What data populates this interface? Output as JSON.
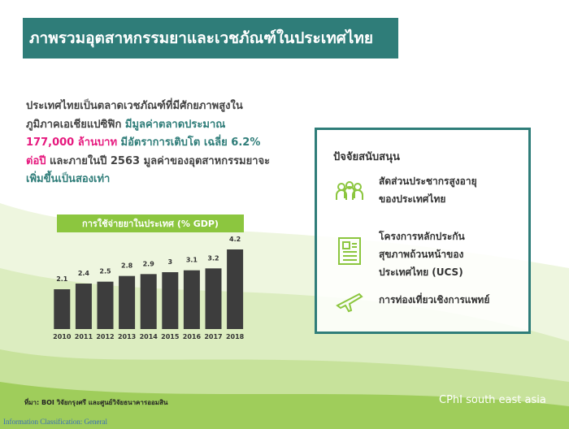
{
  "header": {
    "title": "ภาพรวมอุตสาหกรรมยาและเวชภัณฑ์ในประเทศไทย"
  },
  "intro": {
    "lines": [
      [
        {
          "text": "ประเทศไทยเป็นตลาดเวชภัณฑ์ที่มีศักยภาพสูงใน",
          "color": "#444444"
        }
      ],
      [
        {
          "text": "ภูมิภาคเอเชียแปซิฟิก ",
          "color": "#444444"
        },
        {
          "text": "มีมูลค่าตลาดประมาณ",
          "color": "#2f7d79"
        }
      ],
      [
        {
          "text": "177,000 ล้านบาท",
          "color": "#e6197e"
        },
        {
          "text": " มีอัตราการเติบโต เฉลี่ย 6.2%",
          "color": "#2f7d79"
        }
      ],
      [
        {
          "text": "ต่อปี",
          "color": "#e6197e"
        },
        {
          "text": " และภายในปี 2563 มูลค่าของอุตสาหกรรมยาจะ",
          "color": "#444444"
        }
      ],
      [
        {
          "text": "เพิ่มขึ้นเป็นสองเท่า",
          "color": "#2f7d79"
        }
      ]
    ]
  },
  "chart_data": {
    "type": "bar",
    "title": "การใช้จ่ายยาในประเทศ (% GDP)",
    "categories": [
      "2010",
      "2011",
      "2012",
      "2013",
      "2014",
      "2015",
      "2016",
      "2017",
      "2018"
    ],
    "values": [
      2.1,
      2.4,
      2.5,
      2.8,
      2.9,
      3,
      3.1,
      3.2,
      4.2
    ],
    "color": "#3d3d3d"
  },
  "panel": {
    "title": "ปัจจัยสนับสนุน",
    "items": [
      [
        "สัดส่วนประชากรสูงอายุ",
        "ของประเทศไทย"
      ],
      [
        "โครงการหลักประกัน",
        "สุขภาพถ้วนหน้าของ",
        "ประเทศไทย (UCS)"
      ],
      [
        "การท่องเที่ยวเชิงการแพทย์"
      ]
    ]
  },
  "footer": {
    "source": "ที่มา: BOI วิจัยกรุงศรี และศูนย์วิจัยธนาคารออมสิน",
    "brand": "CPhI south east asia",
    "classification": "Information Classification: General"
  }
}
